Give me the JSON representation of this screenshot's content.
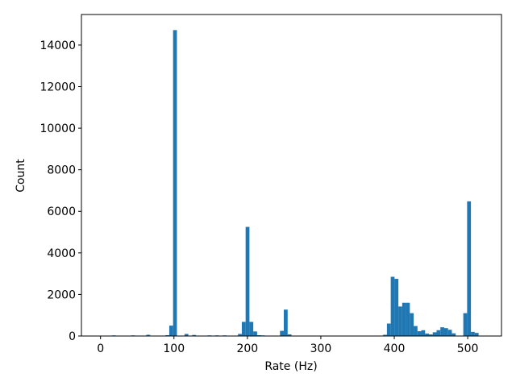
{
  "chart_data": {
    "type": "histogram",
    "xlabel": "Rate (Hz)",
    "ylabel": "Count",
    "color": "#1f77b4",
    "bins": [
      0,
      5.2,
      10.4,
      15.6,
      20.8,
      26,
      31.2,
      36.4,
      41.6,
      46.8,
      52,
      57.2,
      62.4,
      67.6,
      72.8,
      78,
      83.2,
      88.4,
      93.6,
      98.8,
      104,
      109.2,
      114.4,
      119.6,
      124.8,
      130,
      135.2,
      140.4,
      145.6,
      150.8,
      156,
      161.2,
      166.4,
      171.6,
      176.8,
      182,
      187.2,
      192.4,
      197.6,
      202.8,
      208,
      213.2,
      218.4,
      223.6,
      228.8,
      234,
      239.2,
      244.4,
      249.6,
      254.8,
      260,
      265.2,
      270.4,
      275.6,
      280.8,
      286,
      291.2,
      296.4,
      301.6,
      306.8,
      312,
      317.2,
      322.4,
      327.6,
      332.8,
      338,
      343.2,
      348.4,
      353.6,
      358.8,
      364,
      369.2,
      374.4,
      379.6,
      384.8,
      390,
      395.2,
      400.4,
      405.6,
      410.8,
      416,
      421.2,
      426.4,
      431.6,
      436.8,
      442,
      447.2,
      452.4,
      457.6,
      462.8,
      468,
      473.2,
      478.4,
      483.6,
      488.8,
      494,
      499.2,
      504.4,
      509.6,
      514.8,
      520
    ],
    "values": [
      0,
      0,
      0,
      30,
      0,
      0,
      0,
      0,
      30,
      0,
      20,
      0,
      60,
      0,
      0,
      20,
      0,
      40,
      500,
      14720,
      0,
      0,
      100,
      0,
      50,
      0,
      0,
      0,
      30,
      0,
      30,
      0,
      30,
      0,
      0,
      20,
      100,
      680,
      5250,
      680,
      220,
      40,
      30,
      0,
      0,
      0,
      0,
      250,
      1270,
      80,
      0,
      0,
      0,
      0,
      0,
      0,
      0,
      0,
      0,
      0,
      0,
      0,
      0,
      0,
      0,
      0,
      0,
      0,
      0,
      0,
      0,
      0,
      0,
      20,
      60,
      600,
      2850,
      2750,
      1420,
      1600,
      1600,
      1100,
      480,
      230,
      280,
      120,
      80,
      180,
      280,
      420,
      380,
      300,
      130,
      0,
      0,
      1100,
      6480,
      200,
      150,
      0
    ],
    "xlim": [
      -26,
      546
    ],
    "ylim": [
      0,
      15470
    ],
    "xticks": [
      0,
      100,
      200,
      300,
      400,
      500
    ],
    "yticks": [
      0,
      2000,
      4000,
      6000,
      8000,
      10000,
      12000,
      14000
    ]
  }
}
